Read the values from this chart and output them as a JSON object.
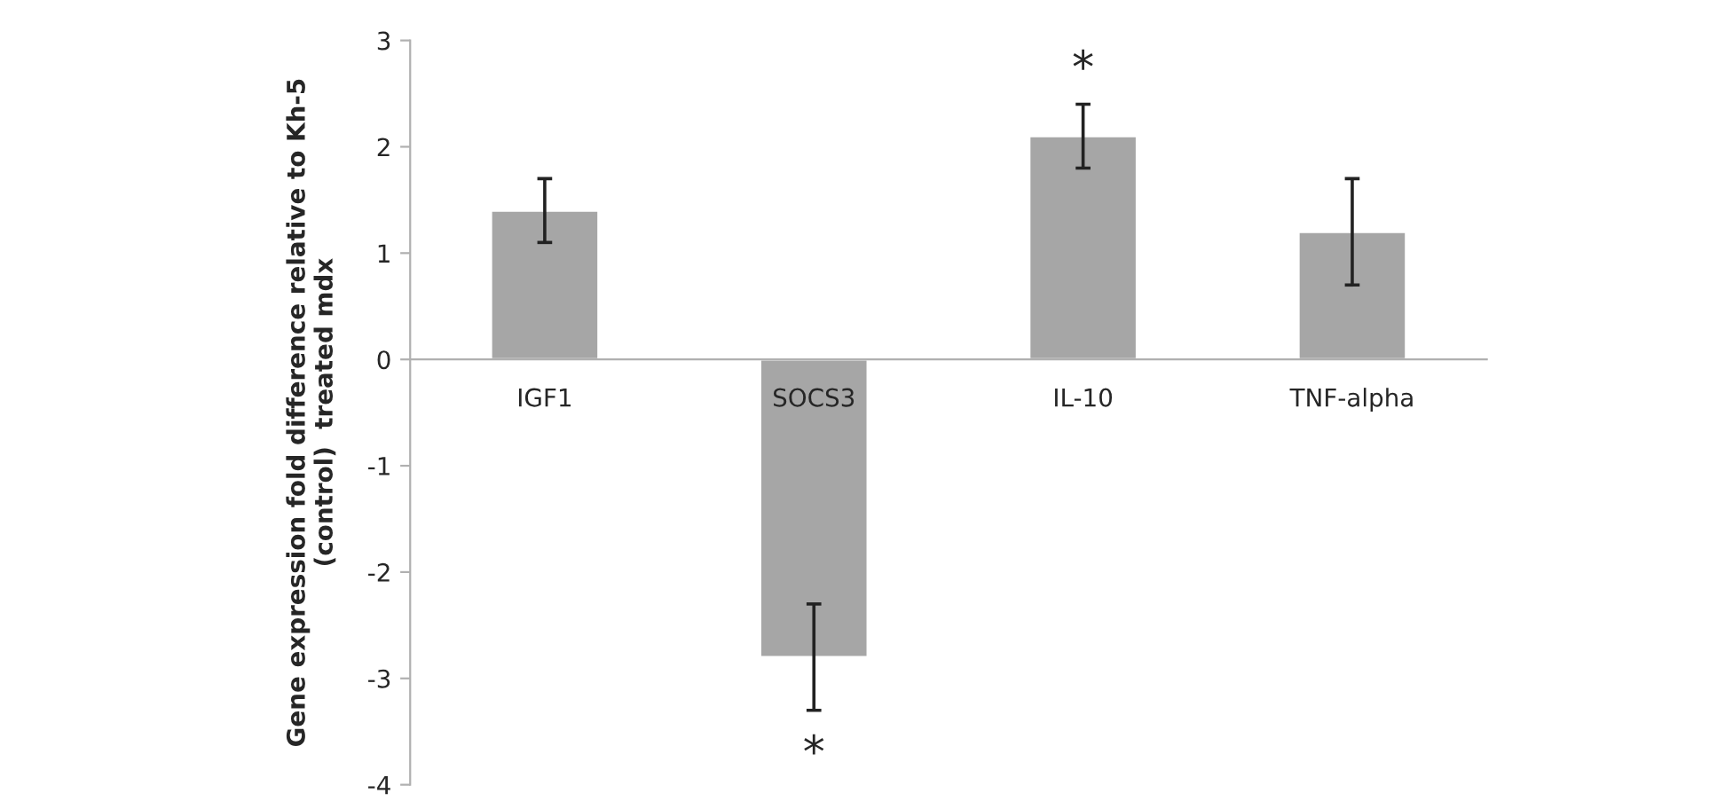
{
  "chart_data": {
    "type": "bar",
    "ylabel": "Gene expression fold difference relative to Kh-5\n(control)  treated mdx",
    "categories": [
      "IGF1",
      "SOCS3",
      "IL-10",
      "TNF-alpha"
    ],
    "values": [
      1.4,
      -2.8,
      2.1,
      1.2
    ],
    "errors": [
      0.3,
      0.5,
      0.3,
      0.5
    ],
    "color": "#a6a6a6",
    "ylim": [
      -4,
      3
    ],
    "yticks": [
      -4,
      -3,
      -2,
      -1,
      0,
      1,
      2,
      3
    ],
    "grid": false,
    "annotations": [
      "*",
      "*"
    ]
  }
}
